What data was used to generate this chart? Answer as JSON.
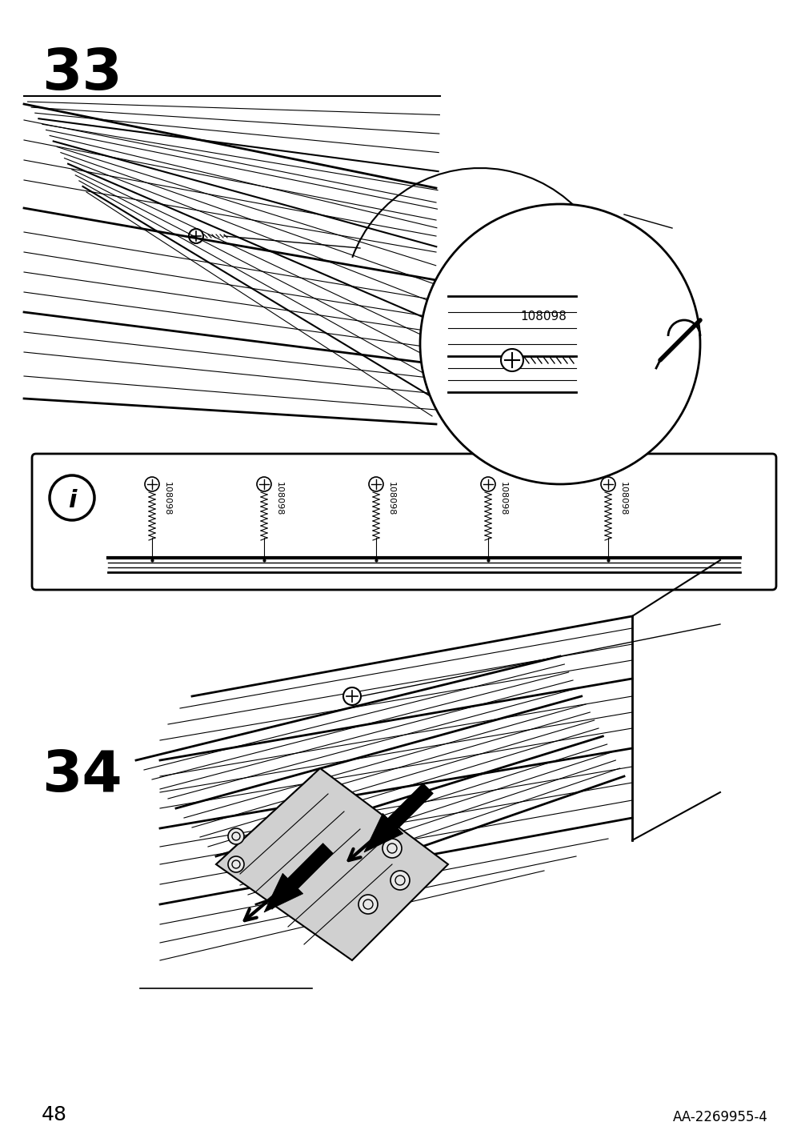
{
  "bg_color": "#ffffff",
  "step33_number": "33",
  "step34_number": "34",
  "page_number": "48",
  "part_number": "AA-2269955-4",
  "screw_label": "108098",
  "num_screws": 5
}
